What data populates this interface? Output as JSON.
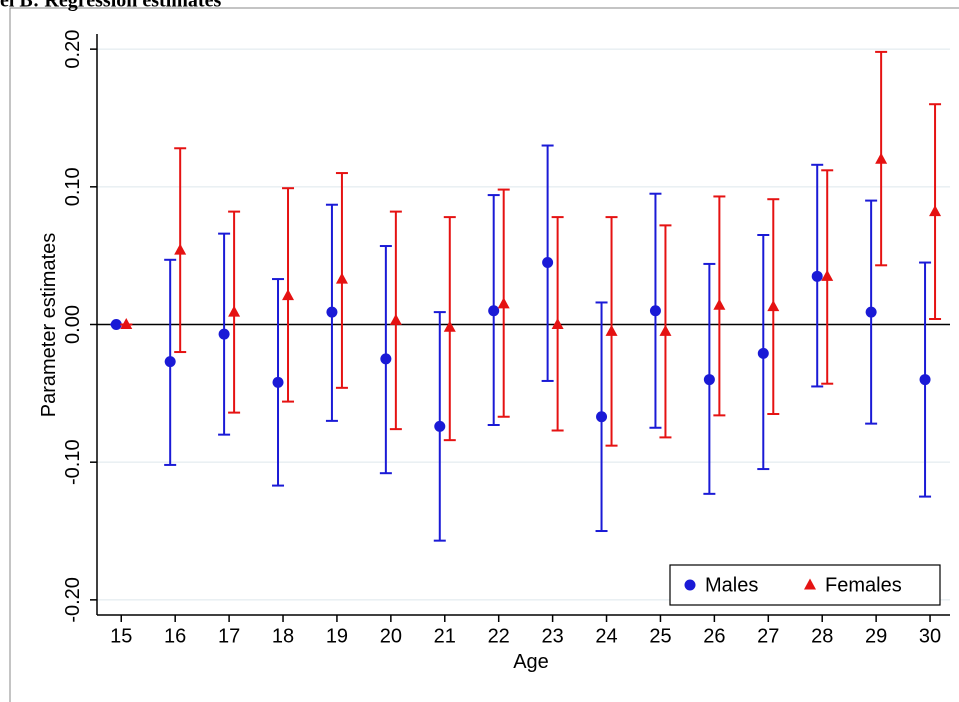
{
  "panel_title": "el B: Regression estimates",
  "chart_data": {
    "type": "errorbar",
    "x_label": "Age",
    "y_label": "Parameter estimates",
    "x": [
      15,
      16,
      17,
      18,
      19,
      20,
      21,
      22,
      23,
      24,
      25,
      26,
      27,
      28,
      29,
      30
    ],
    "xlim": [
      14.55,
      30.37
    ],
    "xticks": [
      15,
      16,
      17,
      18,
      19,
      20,
      21,
      22,
      23,
      24,
      25,
      26,
      27,
      28,
      29,
      30
    ],
    "ylim": [
      -0.211,
      0.211
    ],
    "yticks": [
      {
        "value": -0.2,
        "label": "-0.20"
      },
      {
        "value": -0.1,
        "label": "-0.10"
      },
      {
        "value": 0,
        "label": "0.00"
      },
      {
        "value": 0.1,
        "label": "0.10"
      },
      {
        "value": 0.2,
        "label": "0.20"
      }
    ],
    "grid": true,
    "hline": 0,
    "legend": "lower right",
    "series": [
      {
        "name": "Males",
        "color": "#1a1ad6",
        "marker": "circle",
        "values": [
          0,
          -0.027,
          -0.007,
          -0.042,
          0.009,
          -0.025,
          -0.074,
          0.01,
          0.045,
          -0.067,
          0.01,
          -0.04,
          -0.021,
          0.035,
          0.009,
          -0.04
        ],
        "lower": [
          0,
          -0.102,
          -0.08,
          -0.117,
          -0.07,
          -0.108,
          -0.157,
          -0.073,
          -0.041,
          -0.15,
          -0.075,
          -0.123,
          -0.105,
          -0.045,
          -0.072,
          -0.125
        ],
        "upper": [
          0,
          0.047,
          0.066,
          0.033,
          0.087,
          0.057,
          0.009,
          0.094,
          0.13,
          0.016,
          0.095,
          0.044,
          0.065,
          0.116,
          0.09,
          0.045
        ]
      },
      {
        "name": "Females",
        "color": "#e51212",
        "marker": "triangle",
        "values": [
          0,
          0.054,
          0.009,
          0.021,
          0.033,
          0.003,
          -0.002,
          0.015,
          0.0,
          -0.005,
          -0.005,
          0.014,
          0.013,
          0.035,
          0.12,
          0.082
        ],
        "lower": [
          0,
          -0.02,
          -0.064,
          -0.056,
          -0.046,
          -0.076,
          -0.084,
          -0.067,
          -0.077,
          -0.088,
          -0.082,
          -0.066,
          -0.065,
          -0.043,
          0.043,
          0.004
        ],
        "upper": [
          0,
          0.128,
          0.082,
          0.099,
          0.11,
          0.082,
          0.078,
          0.098,
          0.078,
          0.078,
          0.072,
          0.093,
          0.091,
          0.112,
          0.198,
          0.16
        ]
      }
    ]
  }
}
